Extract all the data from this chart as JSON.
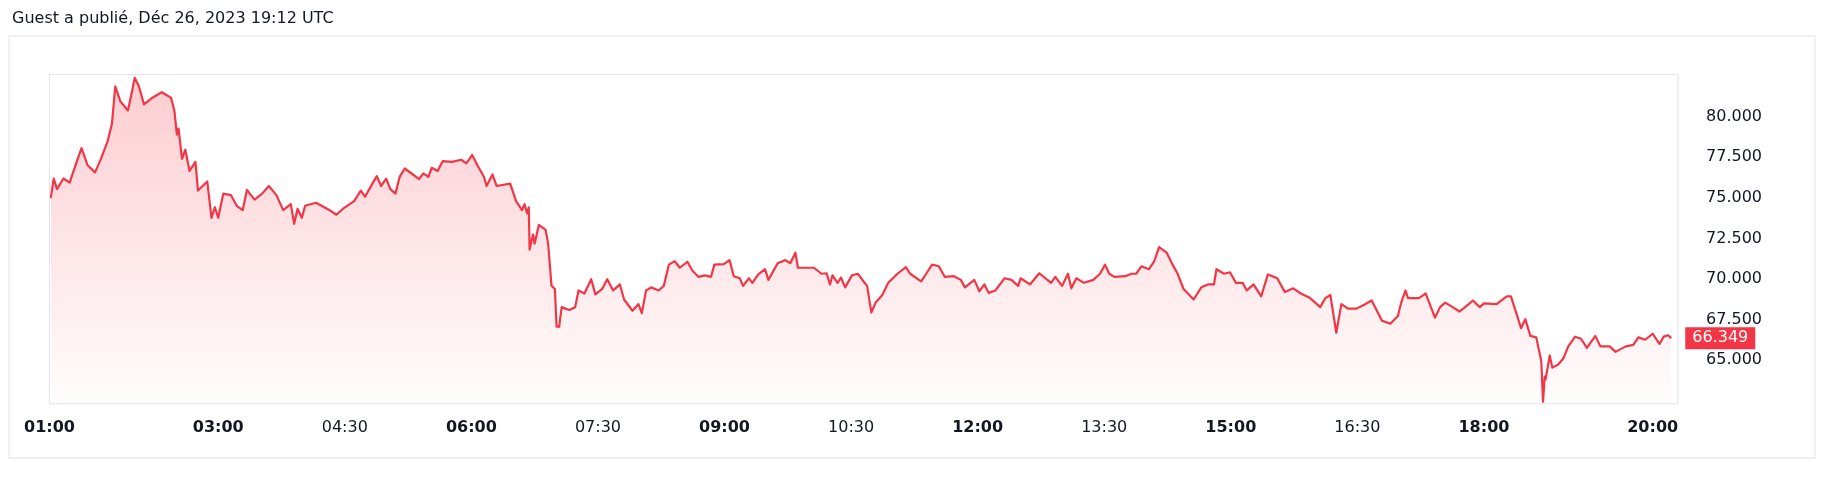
{
  "chart_data": {
    "type": "area",
    "title": "Guest a publié, Déc 26, 2023 19:12 UTC",
    "x": [
      1.015,
      1.05,
      1.09,
      1.165,
      1.24,
      1.31,
      1.38,
      1.45,
      1.54,
      1.61,
      1.69,
      1.74,
      1.78,
      1.84,
      1.93,
      1.98,
      2.01,
      2.06,
      2.12,
      2.21,
      2.33,
      2.44,
      2.48,
      2.51,
      2.53,
      2.57,
      2.61,
      2.66,
      2.73,
      2.76,
      2.87,
      2.92,
      2.96,
      3.0,
      3.06,
      3.15,
      3.22,
      3.29,
      3.34,
      3.43,
      3.52,
      3.6,
      3.69,
      3.77,
      3.86,
      3.9,
      3.94,
      3.99,
      4.03,
      4.16,
      4.31,
      4.4,
      4.48,
      4.61,
      4.69,
      4.74,
      4.83,
      4.88,
      4.93,
      4.99,
      5.04,
      5.1,
      5.15,
      5.21,
      5.3,
      5.38,
      5.43,
      5.49,
      5.53,
      5.6,
      5.66,
      5.77,
      5.88,
      5.94,
      6.01,
      6.07,
      6.15,
      6.18,
      6.25,
      6.3,
      6.46,
      6.53,
      6.6,
      6.63,
      6.66,
      6.68,
      6.69,
      6.73,
      6.75,
      6.8,
      6.88,
      6.91,
      6.95,
      6.99,
      7.01,
      7.04,
      7.07,
      7.16,
      7.23,
      7.27,
      7.34,
      7.42,
      7.47,
      7.55,
      7.61,
      7.68,
      7.76,
      7.81,
      7.91,
      7.98,
      8.02,
      8.07,
      8.13,
      8.22,
      8.28,
      8.34,
      8.41,
      8.47,
      8.56,
      8.62,
      8.69,
      8.77,
      8.84,
      8.88,
      8.99,
      9.06,
      9.11,
      9.18,
      9.22,
      9.29,
      9.33,
      9.4,
      9.48,
      9.52,
      9.63,
      9.72,
      9.78,
      9.84,
      9.87,
      9.97,
      10.06,
      10.15,
      10.21,
      10.25,
      10.28,
      10.34,
      10.38,
      10.43,
      10.51,
      10.58,
      10.66,
      10.69,
      10.74,
      10.79,
      10.87,
      10.94,
      11.05,
      11.15,
      11.2,
      11.33,
      11.39,
      11.46,
      11.54,
      11.61,
      11.72,
      11.8,
      11.85,
      11.96,
      12.02,
      12.08,
      12.13,
      12.21,
      12.32,
      12.4,
      12.48,
      12.51,
      12.62,
      12.73,
      12.87,
      12.92,
      13.0,
      13.07,
      13.11,
      13.17,
      13.26,
      13.37,
      13.45,
      13.51,
      13.56,
      13.62,
      13.75,
      13.82,
      13.88,
      13.94,
      14.03,
      14.09,
      14.15,
      14.24,
      14.31,
      14.37,
      14.44,
      14.56,
      14.65,
      14.73,
      14.8,
      14.83,
      14.92,
      14.99,
      15.06,
      15.14,
      15.19,
      15.27,
      15.36,
      15.44,
      15.55,
      15.64,
      15.74,
      15.83,
      15.94,
      16.06,
      16.12,
      16.18,
      16.25,
      16.31,
      16.39,
      16.49,
      16.58,
      16.67,
      16.79,
      16.89,
      16.98,
      17.02,
      17.07,
      17.1,
      17.23,
      17.31,
      17.42,
      17.48,
      17.54,
      17.63,
      17.71,
      17.82,
      17.87,
      17.95,
      18.0,
      18.15,
      18.27,
      18.32,
      18.4,
      18.44,
      18.49,
      18.55,
      18.62,
      18.68,
      18.7,
      18.72,
      18.73,
      18.78,
      18.81,
      18.88,
      18.94,
      19.0,
      19.08,
      19.15,
      19.22,
      19.32,
      19.38,
      19.49,
      19.56,
      19.68,
      19.77,
      19.83,
      19.91,
      20.0,
      20.08,
      20.13,
      20.18,
      20.22
    ],
    "series": [
      {
        "color": "#f23645",
        "values": [
          74.98,
          76.19,
          75.54,
          76.19,
          75.95,
          77.03,
          78.06,
          77.03,
          76.57,
          77.4,
          78.5,
          79.55,
          81.88,
          80.95,
          80.39,
          81.6,
          82.4,
          81.88,
          80.76,
          81.14,
          81.51,
          81.18,
          80.39,
          78.9,
          79.27,
          77.41,
          77.97,
          76.66,
          77.22,
          75.45,
          76.01,
          73.77,
          74.42,
          73.77,
          75.26,
          75.17,
          74.51,
          74.24,
          75.49,
          74.89,
          75.26,
          75.73,
          75.17,
          74.24,
          74.61,
          73.4,
          74.33,
          73.77,
          74.51,
          74.7,
          74.27,
          73.96,
          74.33,
          74.8,
          75.45,
          75.07,
          75.91,
          76.34,
          75.73,
          76.19,
          75.54,
          75.26,
          76.29,
          76.81,
          76.47,
          76.16,
          76.51,
          76.29,
          76.85,
          76.66,
          77.26,
          77.22,
          77.35,
          77.13,
          77.65,
          77.03,
          76.29,
          75.73,
          76.44,
          75.73,
          75.88,
          74.8,
          74.24,
          74.61,
          74.05,
          74.42,
          71.81,
          72.74,
          72.18,
          73.34,
          73.02,
          72.18,
          69.57,
          69.38,
          67.05,
          67.05,
          68.26,
          68.08,
          68.26,
          69.29,
          69.1,
          69.98,
          69.05,
          69.38,
          69.98,
          69.29,
          69.66,
          68.73,
          68.04,
          68.45,
          67.89,
          69.29,
          69.48,
          69.29,
          69.57,
          70.88,
          71.1,
          70.69,
          71.06,
          70.5,
          70.13,
          70.22,
          70.13,
          70.88,
          70.91,
          71.16,
          70.17,
          70.04,
          69.57,
          70.04,
          69.76,
          70.28,
          70.6,
          69.94,
          70.97,
          71.16,
          70.97,
          71.62,
          70.69,
          70.69,
          70.69,
          70.32,
          70.35,
          69.66,
          70.22,
          69.76,
          70.09,
          69.48,
          70.22,
          70.32,
          69.76,
          69.57,
          67.93,
          68.54,
          69.01,
          69.76,
          70.32,
          70.73,
          70.32,
          69.85,
          70.32,
          70.88,
          70.78,
          70.13,
          70.17,
          69.94,
          69.48,
          69.94,
          69.24,
          69.66,
          69.14,
          69.29,
          70.04,
          69.94,
          69.57,
          70.04,
          69.66,
          70.35,
          69.76,
          70.13,
          69.57,
          70.32,
          69.42,
          70.04,
          69.76,
          69.94,
          70.32,
          70.88,
          70.32,
          70.13,
          70.17,
          70.32,
          70.32,
          70.78,
          70.6,
          71.06,
          71.96,
          71.62,
          70.88,
          70.32,
          69.38,
          68.73,
          69.48,
          69.66,
          69.66,
          70.6,
          70.32,
          70.41,
          69.76,
          69.76,
          69.29,
          69.66,
          68.92,
          70.28,
          70.04,
          69.2,
          69.42,
          69.1,
          68.82,
          68.26,
          68.82,
          69.01,
          66.68,
          68.45,
          68.17,
          68.17,
          68.41,
          68.67,
          67.43,
          67.24,
          67.71,
          68.54,
          69.29,
          68.82,
          68.82,
          69.1,
          67.61,
          68.26,
          68.54,
          68.26,
          67.99,
          68.45,
          68.67,
          68.26,
          68.49,
          68.45,
          68.92,
          68.92,
          67.61,
          66.96,
          67.52,
          66.49,
          66.4,
          64.91,
          62.43,
          63.97,
          63.79,
          65.28,
          64.53,
          64.72,
          65.09,
          65.84,
          66.44,
          66.31,
          65.75,
          66.49,
          65.84,
          65.84,
          65.5,
          65.84,
          65.93,
          66.4,
          66.25,
          66.62,
          65.99,
          66.44,
          66.53,
          66.349
        ]
      }
    ],
    "xlim": [
      1.0,
      20.3
    ],
    "xticks": [
      {
        "value": 1,
        "label": "01:00"
      },
      {
        "value": 3,
        "label": "03:00"
      },
      {
        "value": 4.5,
        "label": "04:30"
      },
      {
        "value": 6,
        "label": "06:00"
      },
      {
        "value": 7.5,
        "label": "07:30"
      },
      {
        "value": 9,
        "label": "09:00"
      },
      {
        "value": 10.5,
        "label": "10:30"
      },
      {
        "value": 12,
        "label": "12:00"
      },
      {
        "value": 13.5,
        "label": "13:30"
      },
      {
        "value": 15,
        "label": "15:00"
      },
      {
        "value": 16.5,
        "label": "16:30"
      },
      {
        "value": 18,
        "label": "18:00"
      },
      {
        "value": 20,
        "label": "20:00"
      }
    ],
    "ylim": [
      62.3,
      82.6
    ],
    "yticks": [
      {
        "value": 65,
        "label": "65.000"
      },
      {
        "value": 67.5,
        "label": "67.500"
      },
      {
        "value": 70,
        "label": "70.000"
      },
      {
        "value": 72.5,
        "label": "72.500"
      },
      {
        "value": 75,
        "label": "75.000"
      },
      {
        "value": 77.5,
        "label": "77.500"
      },
      {
        "value": 80,
        "label": "80.000"
      }
    ],
    "annotations": [
      {
        "text": "66.349",
        "x": 20.22,
        "y": 66.349
      }
    ],
    "grid": false,
    "legend": false,
    "marker": "none",
    "line_style": "solid"
  }
}
